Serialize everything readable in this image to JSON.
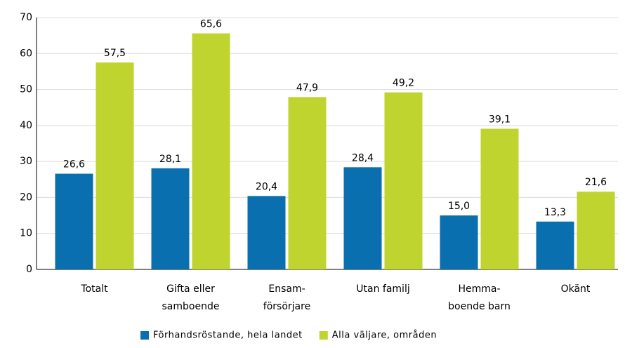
{
  "chart_data": {
    "type": "bar",
    "categories": [
      [
        "Totalt"
      ],
      [
        "Gifta eller",
        "samboende"
      ],
      [
        "Ensam-",
        "försörjare"
      ],
      [
        "Utan familj"
      ],
      [
        "Hemma-",
        "boende barn"
      ],
      [
        "Okänt"
      ]
    ],
    "series": [
      {
        "name": "Förhandsröstande, hela landet",
        "color": "#0a6fae",
        "values": [
          26.6,
          28.1,
          20.4,
          28.4,
          15.0,
          13.3
        ],
        "value_labels": [
          "26,6",
          "28,1",
          "20,4",
          "28,4",
          "15,0",
          "13,3"
        ]
      },
      {
        "name": "Alla väljare, områden",
        "color": "#bfd42e",
        "values": [
          57.5,
          65.6,
          47.9,
          49.2,
          39.1,
          21.6
        ],
        "value_labels": [
          "57,5",
          "65,6",
          "47,9",
          "49,2",
          "39,1",
          "21,6"
        ]
      }
    ],
    "ylim": [
      0,
      70
    ],
    "yticks": [
      0,
      10,
      20,
      30,
      40,
      50,
      60,
      70
    ],
    "grid": true,
    "legend": "bottom"
  }
}
